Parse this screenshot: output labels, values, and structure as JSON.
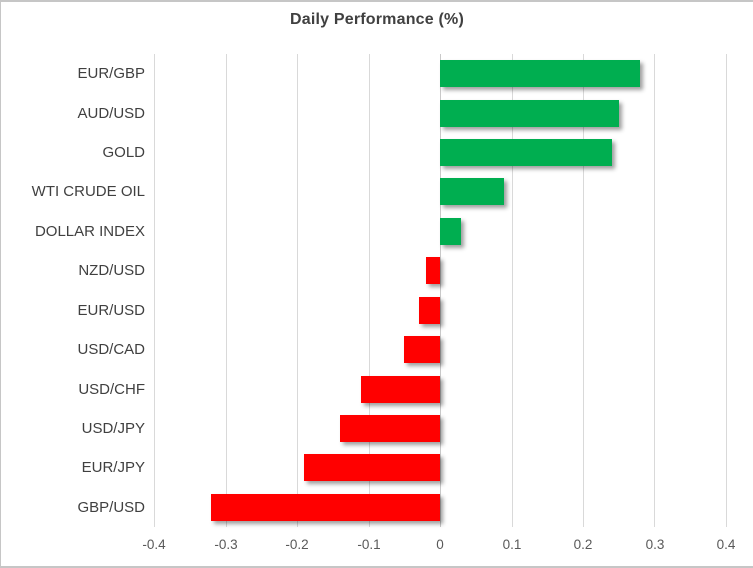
{
  "chart_data": {
    "type": "bar",
    "orientation": "horizontal",
    "title": "Daily Performance (%)",
    "categories": [
      "EUR/GBP",
      "AUD/USD",
      "GOLD",
      "WTI CRUDE OIL",
      "DOLLAR INDEX",
      "NZD/USD",
      "EUR/USD",
      "USD/CAD",
      "USD/CHF",
      "USD/JPY",
      "EUR/JPY",
      "GBP/USD"
    ],
    "values": [
      0.28,
      0.25,
      0.24,
      0.09,
      0.03,
      -0.02,
      -0.03,
      -0.05,
      -0.11,
      -0.14,
      -0.19,
      -0.32
    ],
    "xlabel": "",
    "ylabel": "",
    "xlim": [
      -0.4,
      0.4
    ],
    "x_ticks": [
      -0.4,
      -0.3,
      -0.2,
      -0.1,
      0,
      0.1,
      0.2,
      0.3,
      0.4
    ],
    "x_tick_labels": [
      "-0.4",
      "-0.3",
      "-0.2",
      "-0.1",
      "0",
      "0.1",
      "0.2",
      "0.3",
      "0.4"
    ],
    "grid": true,
    "legend": "none",
    "colors": {
      "positive_bar": "#00AE50",
      "negative_bar": "#FF0000",
      "gridline": "#D9D9D9",
      "zero_axis_line": "#C9C9C9",
      "title_text": "#404040",
      "category_text": "#404040",
      "tick_text": "#595959",
      "frame_border": "#C6C6C6",
      "background": "#FFFFFF"
    }
  }
}
